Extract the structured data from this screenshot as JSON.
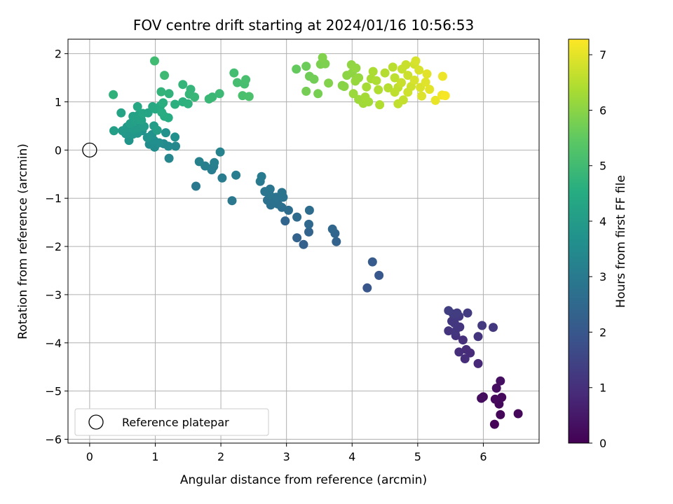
{
  "chart_data": {
    "type": "scatter",
    "title": "FOV centre drift starting at 2024/01/16 10:56:53",
    "xlabel": "Angular distance from reference (arcmin)",
    "ylabel": "Rotation from reference (arcmin)",
    "xlim": [
      -0.33,
      6.85
    ],
    "ylim": [
      -6.08,
      2.3
    ],
    "xticks": [
      "0",
      "1",
      "2",
      "3",
      "4",
      "5",
      "6"
    ],
    "yticks": [
      "2",
      "1",
      "0",
      "−1",
      "−2",
      "−3",
      "−4",
      "−5",
      "−6"
    ],
    "grid": true,
    "colormap": "viridis",
    "colorbar": {
      "label": "Hours from first FF file",
      "min": 0,
      "max": 7.28,
      "ticks": [
        "0",
        "1",
        "2",
        "3",
        "4",
        "5",
        "6",
        "7"
      ]
    },
    "reference_point": {
      "x": 0,
      "y": 0
    },
    "legend": {
      "label": "Reference platepar",
      "position": "lower-left"
    },
    "points": [
      [
        6.17,
        -5.69,
        0.05
      ],
      [
        6.26,
        -5.49,
        0.1
      ],
      [
        6.53,
        -5.47,
        0.12
      ],
      [
        6.24,
        -5.27,
        0.15
      ],
      [
        6.28,
        -5.13,
        0.18
      ],
      [
        6.18,
        -5.17,
        0.2
      ],
      [
        6.0,
        -5.12,
        0.22
      ],
      [
        5.97,
        -5.15,
        0.25
      ],
      [
        6.2,
        -4.94,
        0.28
      ],
      [
        6.26,
        -4.79,
        0.32
      ],
      [
        5.92,
        -4.43,
        0.85
      ],
      [
        5.72,
        -4.33,
        0.95
      ],
      [
        5.8,
        -4.21,
        0.9
      ],
      [
        5.63,
        -4.19,
        0.95
      ],
      [
        5.74,
        -4.14,
        0.9
      ],
      [
        5.69,
        -3.94,
        1.0
      ],
      [
        5.58,
        -3.85,
        1.05
      ],
      [
        5.92,
        -3.87,
        1.1
      ],
      [
        5.47,
        -3.75,
        1.1
      ],
      [
        5.57,
        -3.77,
        1.15
      ],
      [
        5.64,
        -3.67,
        1.12
      ],
      [
        6.15,
        -3.68,
        1.2
      ],
      [
        5.98,
        -3.64,
        1.25
      ],
      [
        5.56,
        -3.59,
        1.2
      ],
      [
        5.52,
        -3.55,
        1.18
      ],
      [
        5.63,
        -3.45,
        1.22
      ],
      [
        5.54,
        -3.4,
        1.3
      ],
      [
        5.6,
        -3.38,
        1.3
      ],
      [
        5.76,
        -3.38,
        1.28
      ],
      [
        5.47,
        -3.33,
        1.35
      ],
      [
        4.23,
        -2.86,
        1.95
      ],
      [
        4.41,
        -2.6,
        2.0
      ],
      [
        4.31,
        -2.32,
        2.1
      ],
      [
        3.26,
        -1.96,
        2.25
      ],
      [
        3.16,
        -1.82,
        2.3
      ],
      [
        3.34,
        -1.7,
        2.35
      ],
      [
        3.76,
        -1.9,
        2.3
      ],
      [
        3.74,
        -1.73,
        2.4
      ],
      [
        3.7,
        -1.64,
        2.45
      ],
      [
        3.34,
        -1.54,
        2.5
      ],
      [
        2.98,
        -1.47,
        2.4
      ],
      [
        3.16,
        -1.39,
        2.55
      ],
      [
        3.35,
        -1.25,
        2.6
      ],
      [
        3.03,
        -1.25,
        2.6
      ],
      [
        2.93,
        -1.19,
        2.65
      ],
      [
        2.87,
        -1.12,
        2.7
      ],
      [
        2.76,
        -1.14,
        2.7
      ],
      [
        2.71,
        -1.04,
        2.72
      ],
      [
        2.8,
        -1.05,
        2.75
      ],
      [
        2.84,
        -0.98,
        2.8
      ],
      [
        2.95,
        -0.98,
        2.8
      ],
      [
        2.93,
        -0.88,
        2.82
      ],
      [
        2.74,
        -0.92,
        2.85
      ],
      [
        2.67,
        -0.86,
        2.85
      ],
      [
        2.75,
        -0.81,
        2.88
      ],
      [
        2.17,
        -1.05,
        2.9
      ],
      [
        1.62,
        -0.75,
        2.95
      ],
      [
        2.6,
        -0.65,
        3.0
      ],
      [
        2.62,
        -0.55,
        3.02
      ],
      [
        2.02,
        -0.58,
        3.05
      ],
      [
        2.23,
        -0.52,
        3.08
      ],
      [
        1.86,
        -0.41,
        3.1
      ],
      [
        1.89,
        -0.34,
        3.12
      ],
      [
        1.76,
        -0.33,
        3.15
      ],
      [
        1.9,
        -0.26,
        3.18
      ],
      [
        1.67,
        -0.24,
        3.2
      ],
      [
        1.99,
        -0.04,
        3.25
      ],
      [
        1.21,
        -0.17,
        3.35
      ],
      [
        1.31,
        0.08,
        3.4
      ],
      [
        1.2,
        0.08,
        3.45
      ],
      [
        1.13,
        0.13,
        3.48
      ],
      [
        0.99,
        0.06,
        3.52
      ],
      [
        0.91,
        0.12,
        3.55
      ],
      [
        1.06,
        0.15,
        3.58
      ],
      [
        0.98,
        0.2,
        3.62
      ],
      [
        1.3,
        0.27,
        3.65
      ],
      [
        1.16,
        0.36,
        3.68
      ],
      [
        0.95,
        0.32,
        3.72
      ],
      [
        0.88,
        0.26,
        3.75
      ],
      [
        0.8,
        0.4,
        3.78
      ],
      [
        0.6,
        0.2,
        3.8
      ],
      [
        0.66,
        0.33,
        3.85
      ],
      [
        0.73,
        0.35,
        3.88
      ],
      [
        0.55,
        0.34,
        3.9
      ],
      [
        0.5,
        0.4,
        3.92
      ],
      [
        0.57,
        0.48,
        3.95
      ],
      [
        0.67,
        0.43,
        3.98
      ],
      [
        0.74,
        0.46,
        4.0
      ],
      [
        0.83,
        0.49,
        4.02
      ],
      [
        0.98,
        0.5,
        4.05
      ],
      [
        1.03,
        0.41,
        4.07
      ],
      [
        0.37,
        0.4,
        4.1
      ],
      [
        0.62,
        0.55,
        4.12
      ],
      [
        0.69,
        0.62,
        4.15
      ],
      [
        0.79,
        0.62,
        4.18
      ],
      [
        0.66,
        0.7,
        4.2
      ],
      [
        0.74,
        0.72,
        4.22
      ],
      [
        0.89,
        0.77,
        4.25
      ],
      [
        0.48,
        0.77,
        4.28
      ],
      [
        0.81,
        0.76,
        4.3
      ],
      [
        0.73,
        0.9,
        4.35
      ],
      [
        0.96,
        0.9,
        4.4
      ],
      [
        1.0,
        0.85,
        4.42
      ],
      [
        1.08,
        0.92,
        4.45
      ],
      [
        1.2,
        0.67,
        4.5
      ],
      [
        1.14,
        0.7,
        4.52
      ],
      [
        1.1,
        0.78,
        4.55
      ],
      [
        1.12,
        0.98,
        4.6
      ],
      [
        1.3,
        0.95,
        4.62
      ],
      [
        1.42,
        1.0,
        4.65
      ],
      [
        1.5,
        0.96,
        4.68
      ],
      [
        0.36,
        1.15,
        4.7
      ],
      [
        1.21,
        1.17,
        4.72
      ],
      [
        1.09,
        1.21,
        4.75
      ],
      [
        1.42,
        1.36,
        4.78
      ],
      [
        1.54,
        1.26,
        4.8
      ],
      [
        1.52,
        1.16,
        4.82
      ],
      [
        1.6,
        1.1,
        4.85
      ],
      [
        1.82,
        1.06,
        4.88
      ],
      [
        1.87,
        1.1,
        4.9
      ],
      [
        1.98,
        1.17,
        4.92
      ],
      [
        1.14,
        1.55,
        4.95
      ],
      [
        0.99,
        1.85,
        5.0
      ],
      [
        2.2,
        1.6,
        5.05
      ],
      [
        2.25,
        1.4,
        5.08
      ],
      [
        2.36,
        1.37,
        5.1
      ],
      [
        2.38,
        1.46,
        5.12
      ],
      [
        2.33,
        1.13,
        5.15
      ],
      [
        2.43,
        1.11,
        5.18
      ],
      [
        3.15,
        1.68,
        5.55
      ],
      [
        3.3,
        1.74,
        5.65
      ],
      [
        3.35,
        1.53,
        5.68
      ],
      [
        3.42,
        1.47,
        5.7
      ],
      [
        3.3,
        1.22,
        5.75
      ],
      [
        3.48,
        1.17,
        5.78
      ],
      [
        3.52,
        1.78,
        5.82
      ],
      [
        3.59,
        1.79,
        5.85
      ],
      [
        3.55,
        1.92,
        5.88
      ],
      [
        3.64,
        1.39,
        5.9
      ],
      [
        3.85,
        1.34,
        5.95
      ],
      [
        3.88,
        1.32,
        5.98
      ],
      [
        3.92,
        1.55,
        6.0
      ],
      [
        4.0,
        1.6,
        6.05
      ],
      [
        3.99,
        1.77,
        6.08
      ],
      [
        4.06,
        1.7,
        6.1
      ],
      [
        4.1,
        1.5,
        6.12
      ],
      [
        4.05,
        1.43,
        6.15
      ],
      [
        4.02,
        1.17,
        6.2
      ],
      [
        4.1,
        1.05,
        6.22
      ],
      [
        4.17,
        0.97,
        6.25
      ],
      [
        4.25,
        1.0,
        6.28
      ],
      [
        4.2,
        1.1,
        6.3
      ],
      [
        4.22,
        1.31,
        6.32
      ],
      [
        4.29,
        1.48,
        6.35
      ],
      [
        4.32,
        1.63,
        6.38
      ],
      [
        4.37,
        1.44,
        6.4
      ],
      [
        4.42,
        0.94,
        6.45
      ],
      [
        4.5,
        1.6,
        6.48
      ],
      [
        4.55,
        1.29,
        6.5
      ],
      [
        4.62,
        1.72,
        6.55
      ],
      [
        4.65,
        1.5,
        6.58
      ],
      [
        4.7,
        1.3,
        6.6
      ],
      [
        4.7,
        0.96,
        6.62
      ],
      [
        4.78,
        1.04,
        6.65
      ],
      [
        4.76,
        1.68,
        6.68
      ],
      [
        4.82,
        1.77,
        6.7
      ],
      [
        4.85,
        1.55,
        6.72
      ],
      [
        4.9,
        1.32,
        6.75
      ],
      [
        4.95,
        1.78,
        6.8
      ],
      [
        4.97,
        1.85,
        6.85
      ],
      [
        5.02,
        1.66,
        6.88
      ],
      [
        5.04,
        1.3,
        6.9
      ],
      [
        5.06,
        1.12,
        6.92
      ],
      [
        5.12,
        1.41,
        6.95
      ],
      [
        5.14,
        1.58,
        6.98
      ],
      [
        5.18,
        1.26,
        7.0
      ],
      [
        5.27,
        1.03,
        7.05
      ],
      [
        5.38,
        1.53,
        7.1
      ],
      [
        5.37,
        1.14,
        7.15
      ],
      [
        5.42,
        1.13,
        7.2
      ],
      [
        4.65,
        1.2,
        6.6
      ],
      [
        4.85,
        1.2,
        6.75
      ],
      [
        4.95,
        1.45,
        6.85
      ],
      [
        4.75,
        1.4,
        6.7
      ],
      [
        4.4,
        1.25,
        6.42
      ]
    ]
  }
}
